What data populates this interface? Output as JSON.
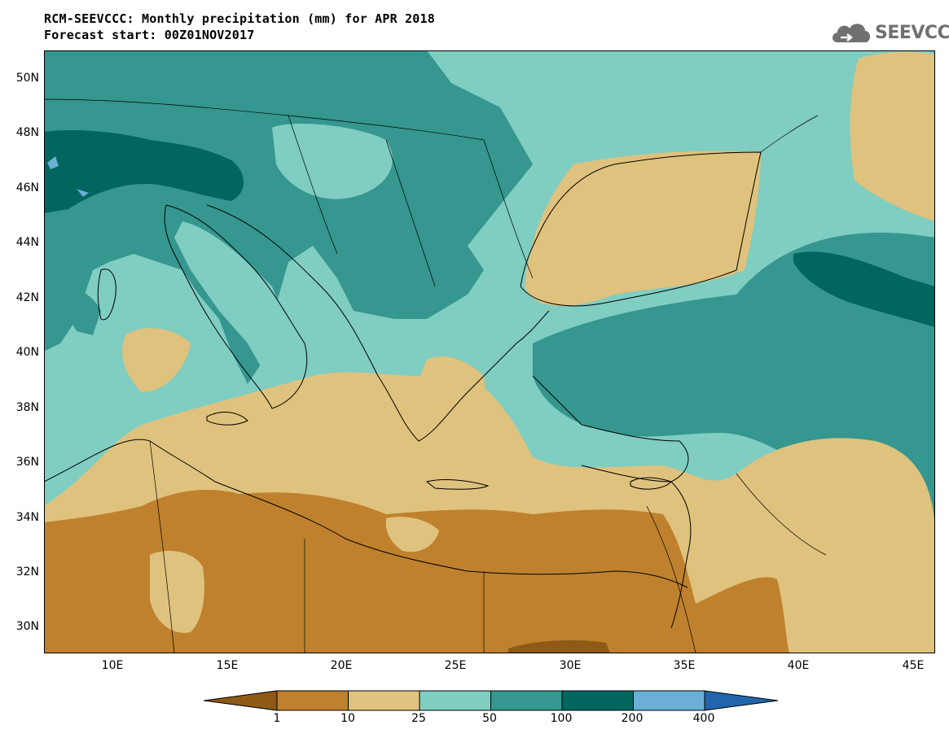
{
  "header": {
    "title_line1": "RCM-SEEVCCC: Monthly precipitation (mm) for APR 2018",
    "title_line2": "Forecast start: 00Z01NOV2017"
  },
  "logo": {
    "text": "SEEVCCC",
    "icon": "cloud-icon",
    "color": "#707070"
  },
  "map": {
    "lat_labels": [
      "50N",
      "48N",
      "46N",
      "44N",
      "42N",
      "40N",
      "38N",
      "36N",
      "34N",
      "32N",
      "30N"
    ],
    "lon_labels": [
      "10E",
      "15E",
      "20E",
      "25E",
      "30E",
      "35E",
      "40E",
      "45E"
    ],
    "lon_range": [
      7,
      46
    ],
    "lat_range": [
      29,
      51
    ]
  },
  "colorbar": {
    "levels": [
      "1",
      "10",
      "25",
      "50",
      "100",
      "200",
      "400"
    ],
    "colors": [
      "#8e5a16",
      "#bf812d",
      "#dfc27d",
      "#80cdc1",
      "#35978f",
      "#01665e",
      "#6baed6",
      "#2166ac"
    ]
  }
}
